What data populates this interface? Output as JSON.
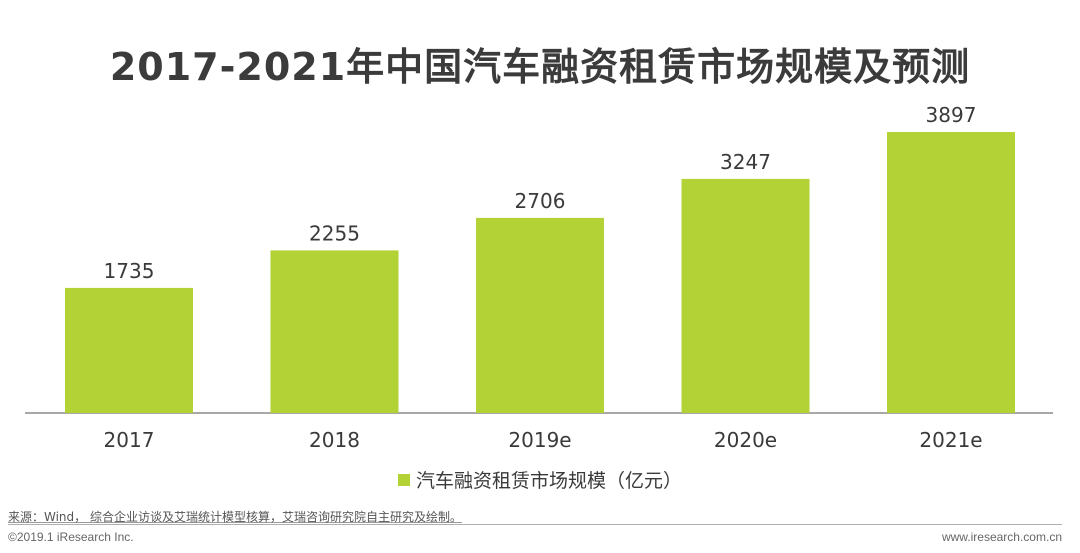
{
  "title": "2017-2021年中国汽车融资租赁市场规模及预测",
  "chart_data": {
    "type": "bar",
    "title": "2017-2021年中国汽车融资租赁市场规模及预测",
    "categories": [
      "2017",
      "2018",
      "2019e",
      "2020e",
      "2021e"
    ],
    "series": [
      {
        "name": "汽车融资租赁市场规模（亿元）",
        "values": [
          1735,
          2255,
          2706,
          3247,
          3897
        ]
      }
    ],
    "ylim": [
      0,
      4200
    ],
    "grid": false,
    "legend_position": "bottom-center",
    "bar_color": "#b2d235"
  },
  "legend_label": "汽车融资租赁市场规模（亿元）",
  "source": "来源：Wind， 综合企业访谈及艾瑞统计模型核算，艾瑞咨询研究院自主研究及绘制。",
  "copyright": "©2019.1 iResearch Inc.",
  "website": "www.iresearch.com.cn",
  "colors": {
    "bar": "#b2d235",
    "axis": "#8c8c8c",
    "text": "#3a3a3a"
  }
}
